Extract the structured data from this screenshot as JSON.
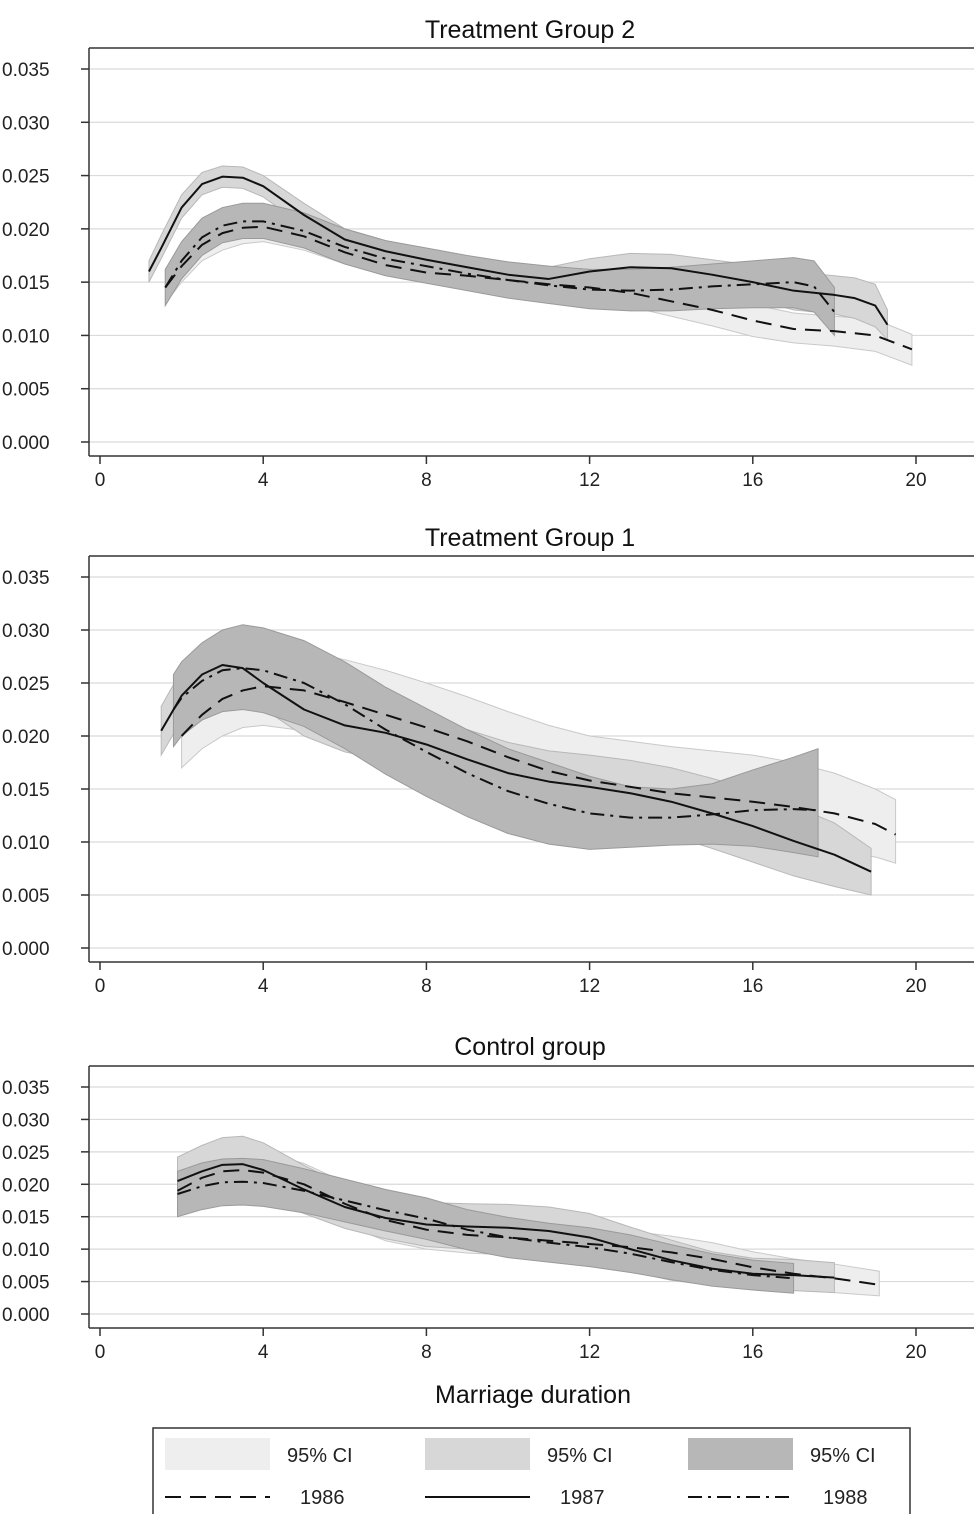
{
  "figure": {
    "xlabel": "Marriage duration",
    "styles": {
      "1986": {
        "dash": "16,9",
        "ci_fill": "#eeeeee",
        "ci_stroke": "#c9c9c9"
      },
      "1987": {
        "dash": "none",
        "ci_fill": "#d7d7d7",
        "ci_stroke": "#b8b8b8"
      },
      "1988": {
        "dash": "14,6,3,6",
        "ci_fill": "#b7b7b7",
        "ci_stroke": "#9a9a9a"
      }
    }
  },
  "legend": {
    "ci": [
      {
        "label": "95% CI",
        "color": "#eeeeee"
      },
      {
        "label": "95% CI",
        "color": "#d7d7d7"
      },
      {
        "label": "95% CI",
        "color": "#b7b7b7"
      }
    ],
    "lines": [
      {
        "label": "1986",
        "series": "1986"
      },
      {
        "label": "1987",
        "series": "1987"
      },
      {
        "label": "1988",
        "series": "1988"
      }
    ]
  },
  "chart_data": [
    {
      "type": "line",
      "title": "Treatment Group 2",
      "xlabel": "",
      "ylabel": "",
      "xlim": [
        0,
        21
      ],
      "ylim": [
        0,
        0.037
      ],
      "xticks": [
        "0",
        "4",
        "8",
        "12",
        "16",
        "20"
      ],
      "yticks": [
        "0.000",
        "0.005",
        "0.010",
        "0.015",
        "0.020",
        "0.025",
        "0.030",
        "0.035"
      ],
      "grid": true,
      "series": [
        {
          "name": "1986",
          "x": [
            1.6,
            2,
            2.5,
            3,
            3.5,
            4,
            5,
            6,
            7,
            8,
            9,
            10,
            11,
            12,
            13,
            14,
            15,
            16,
            17,
            18,
            19,
            19.9
          ],
          "y": [
            0.0145,
            0.0165,
            0.0185,
            0.0196,
            0.0201,
            0.0202,
            0.0193,
            0.0178,
            0.0166,
            0.0159,
            0.0156,
            0.0152,
            0.0148,
            0.0145,
            0.014,
            0.0132,
            0.0124,
            0.0114,
            0.0106,
            0.0104,
            0.01,
            0.0087
          ],
          "ci_low": [
            0.013,
            0.015,
            0.017,
            0.018,
            0.0186,
            0.0188,
            0.018,
            0.0167,
            0.0157,
            0.015,
            0.0146,
            0.0142,
            0.0137,
            0.0133,
            0.0127,
            0.0118,
            0.0109,
            0.0099,
            0.0093,
            0.009,
            0.0085,
            0.0072
          ],
          "ci_high": [
            0.0162,
            0.018,
            0.02,
            0.021,
            0.0216,
            0.0217,
            0.0207,
            0.019,
            0.0177,
            0.0169,
            0.0166,
            0.0162,
            0.0159,
            0.0157,
            0.0153,
            0.0146,
            0.0139,
            0.0129,
            0.0121,
            0.0118,
            0.0115,
            0.0101
          ]
        },
        {
          "name": "1987",
          "x": [
            1.2,
            1.5,
            2,
            2.5,
            3,
            3.5,
            4,
            5,
            6,
            7,
            8,
            9,
            10,
            11,
            12,
            13,
            14,
            15,
            16,
            17,
            18,
            18.5,
            19,
            19.3
          ],
          "y": [
            0.016,
            0.0182,
            0.022,
            0.0242,
            0.0249,
            0.0248,
            0.024,
            0.0213,
            0.019,
            0.0179,
            0.0171,
            0.0164,
            0.0157,
            0.0153,
            0.016,
            0.0164,
            0.0163,
            0.0157,
            0.015,
            0.0142,
            0.0138,
            0.0135,
            0.0128,
            0.011
          ],
          "ci_low": [
            0.015,
            0.0172,
            0.021,
            0.0232,
            0.0239,
            0.0238,
            0.023,
            0.0202,
            0.018,
            0.0169,
            0.0161,
            0.0154,
            0.0147,
            0.0142,
            0.0148,
            0.0151,
            0.015,
            0.0143,
            0.0134,
            0.0124,
            0.012,
            0.0116,
            0.0108,
            0.0096
          ],
          "ci_high": [
            0.017,
            0.0194,
            0.0232,
            0.0253,
            0.0259,
            0.0258,
            0.025,
            0.0224,
            0.02,
            0.0189,
            0.0181,
            0.0174,
            0.0167,
            0.0164,
            0.0172,
            0.0177,
            0.0176,
            0.0171,
            0.0166,
            0.016,
            0.0156,
            0.0154,
            0.0148,
            0.0124
          ]
        },
        {
          "name": "1988",
          "x": [
            1.6,
            2,
            2.5,
            3,
            3.5,
            4,
            5,
            6,
            7,
            8,
            9,
            10,
            11,
            12,
            13,
            14,
            15,
            16,
            17,
            17.5,
            18
          ],
          "y": [
            0.0145,
            0.017,
            0.0192,
            0.0203,
            0.0207,
            0.0207,
            0.0198,
            0.0183,
            0.0172,
            0.0165,
            0.0158,
            0.0152,
            0.0147,
            0.0143,
            0.0142,
            0.0143,
            0.0146,
            0.0148,
            0.015,
            0.0146,
            0.0122
          ],
          "ci_low": [
            0.0128,
            0.0153,
            0.0175,
            0.0187,
            0.0191,
            0.0191,
            0.0182,
            0.0167,
            0.0156,
            0.0149,
            0.0142,
            0.0135,
            0.013,
            0.0125,
            0.0123,
            0.0123,
            0.0125,
            0.0126,
            0.0126,
            0.0122,
            0.01
          ],
          "ci_high": [
            0.0162,
            0.0188,
            0.021,
            0.022,
            0.0224,
            0.0224,
            0.0215,
            0.02,
            0.0189,
            0.0182,
            0.0175,
            0.0169,
            0.0165,
            0.0162,
            0.0162,
            0.0164,
            0.0167,
            0.017,
            0.0173,
            0.017,
            0.0145
          ]
        }
      ]
    },
    {
      "type": "line",
      "title": "Treatment Group 1",
      "xlabel": "",
      "ylabel": "",
      "xlim": [
        0,
        21
      ],
      "ylim": [
        0,
        0.037
      ],
      "xticks": [
        "0",
        "4",
        "8",
        "12",
        "16",
        "20"
      ],
      "yticks": [
        "0.000",
        "0.005",
        "0.010",
        "0.015",
        "0.020",
        "0.025",
        "0.030",
        "0.035"
      ],
      "grid": true,
      "series": [
        {
          "name": "1986",
          "x": [
            2,
            2.5,
            3,
            3.5,
            4,
            5,
            6,
            7,
            8,
            9,
            10,
            11,
            12,
            13,
            14,
            15,
            16,
            17,
            18,
            19,
            19.5
          ],
          "y": [
            0.02,
            0.022,
            0.0235,
            0.0243,
            0.0247,
            0.0243,
            0.0232,
            0.022,
            0.0208,
            0.0195,
            0.018,
            0.0167,
            0.0158,
            0.0152,
            0.0146,
            0.0142,
            0.0138,
            0.0133,
            0.0127,
            0.0117,
            0.0107
          ],
          "ci_low": [
            0.017,
            0.0188,
            0.02,
            0.0208,
            0.021,
            0.0205,
            0.0193,
            0.018,
            0.0167,
            0.0153,
            0.0138,
            0.0124,
            0.0114,
            0.0107,
            0.0101,
            0.0097,
            0.0094,
            0.0092,
            0.009,
            0.0086,
            0.008
          ],
          "ci_high": [
            0.0232,
            0.0252,
            0.0268,
            0.0276,
            0.0282,
            0.028,
            0.0272,
            0.0262,
            0.025,
            0.0237,
            0.0223,
            0.021,
            0.02,
            0.0195,
            0.019,
            0.0186,
            0.0182,
            0.0175,
            0.0165,
            0.015,
            0.014
          ]
        },
        {
          "name": "1987",
          "x": [
            1.5,
            2,
            2.5,
            3,
            3.5,
            4,
            5,
            6,
            7,
            8,
            9,
            10,
            11,
            12,
            13,
            14,
            15,
            16,
            17,
            18,
            18.9
          ],
          "y": [
            0.0205,
            0.0238,
            0.0258,
            0.0267,
            0.0264,
            0.025,
            0.0225,
            0.021,
            0.0203,
            0.0192,
            0.0178,
            0.0165,
            0.0157,
            0.0152,
            0.0146,
            0.0138,
            0.0127,
            0.0115,
            0.0101,
            0.0088,
            0.0072
          ],
          "ci_low": [
            0.0182,
            0.0215,
            0.0235,
            0.0242,
            0.0238,
            0.0226,
            0.02,
            0.0185,
            0.0177,
            0.0165,
            0.0151,
            0.0137,
            0.0128,
            0.0122,
            0.0115,
            0.0106,
            0.0094,
            0.0081,
            0.0068,
            0.0058,
            0.005
          ],
          "ci_high": [
            0.0228,
            0.0262,
            0.0282,
            0.0292,
            0.029,
            0.0276,
            0.025,
            0.0236,
            0.0229,
            0.0219,
            0.0206,
            0.0194,
            0.0186,
            0.0182,
            0.0177,
            0.017,
            0.016,
            0.0149,
            0.0134,
            0.0118,
            0.0094
          ]
        },
        {
          "name": "1988",
          "x": [
            1.8,
            2,
            2.5,
            3,
            3.5,
            4,
            5,
            6,
            7,
            8,
            9,
            10,
            11,
            12,
            13,
            14,
            15,
            16,
            17,
            17.6
          ],
          "y": [
            0.0225,
            0.0236,
            0.0252,
            0.0262,
            0.0264,
            0.0262,
            0.025,
            0.023,
            0.0206,
            0.0185,
            0.0165,
            0.0148,
            0.0136,
            0.0127,
            0.0123,
            0.0123,
            0.0126,
            0.013,
            0.0131,
            0.013
          ],
          "ci_low": [
            0.019,
            0.02,
            0.0215,
            0.0223,
            0.0225,
            0.0222,
            0.0209,
            0.0188,
            0.0164,
            0.0143,
            0.0124,
            0.0108,
            0.0098,
            0.0093,
            0.0095,
            0.0097,
            0.0098,
            0.0096,
            0.009,
            0.0086
          ],
          "ci_high": [
            0.0258,
            0.027,
            0.0288,
            0.03,
            0.0305,
            0.0302,
            0.029,
            0.027,
            0.0246,
            0.0226,
            0.0206,
            0.0188,
            0.0175,
            0.0162,
            0.0152,
            0.015,
            0.0155,
            0.0168,
            0.018,
            0.0188
          ]
        }
      ]
    },
    {
      "type": "line",
      "title": "Control group",
      "xlabel": "Marriage duration",
      "ylabel": "",
      "xlim": [
        0,
        21
      ],
      "ylim": [
        0,
        0.037
      ],
      "xticks": [
        "0",
        "4",
        "8",
        "12",
        "16",
        "20"
      ],
      "yticks": [
        "0.000",
        "0.005",
        "0.010",
        "0.015",
        "0.020",
        "0.025",
        "0.030",
        "0.035"
      ],
      "grid": true,
      "series": [
        {
          "name": "1986",
          "x": [
            1.9,
            2.5,
            3,
            3.5,
            4,
            5,
            6,
            7,
            8,
            9,
            10,
            11,
            12,
            13,
            14,
            15,
            16,
            17,
            18,
            19.1
          ],
          "y": [
            0.019,
            0.021,
            0.022,
            0.0222,
            0.0218,
            0.02,
            0.017,
            0.0145,
            0.013,
            0.0122,
            0.0118,
            0.0113,
            0.0108,
            0.0103,
            0.0095,
            0.0085,
            0.0072,
            0.0062,
            0.0055,
            0.0045
          ],
          "ci_low": [
            0.016,
            0.018,
            0.019,
            0.0193,
            0.0189,
            0.017,
            0.0138,
            0.0113,
            0.01,
            0.0094,
            0.0091,
            0.0087,
            0.0083,
            0.0078,
            0.007,
            0.006,
            0.0048,
            0.0039,
            0.0033,
            0.0028
          ],
          "ci_high": [
            0.0222,
            0.0242,
            0.0252,
            0.0255,
            0.025,
            0.0232,
            0.0203,
            0.0177,
            0.016,
            0.015,
            0.0145,
            0.0139,
            0.0134,
            0.0128,
            0.012,
            0.011,
            0.0096,
            0.0085,
            0.0077,
            0.0066
          ]
        },
        {
          "name": "1987",
          "x": [
            1.9,
            2.5,
            3,
            3.5,
            4,
            5,
            6,
            7,
            8,
            9,
            10,
            11,
            12,
            13,
            14,
            15,
            16,
            17,
            18
          ],
          "y": [
            0.0205,
            0.022,
            0.023,
            0.0231,
            0.0222,
            0.0192,
            0.0165,
            0.0148,
            0.0138,
            0.0135,
            0.0133,
            0.0128,
            0.0118,
            0.01,
            0.0083,
            0.007,
            0.0062,
            0.006,
            0.0056
          ],
          "ci_low": [
            0.0168,
            0.018,
            0.0188,
            0.0188,
            0.018,
            0.0155,
            0.0132,
            0.0116,
            0.0104,
            0.01,
            0.0097,
            0.0091,
            0.0081,
            0.0066,
            0.0052,
            0.0044,
            0.0038,
            0.0036,
            0.0033
          ],
          "ci_high": [
            0.0242,
            0.026,
            0.0272,
            0.0274,
            0.0264,
            0.0229,
            0.0198,
            0.018,
            0.0172,
            0.017,
            0.0169,
            0.0165,
            0.0155,
            0.0134,
            0.0114,
            0.0096,
            0.0086,
            0.0084,
            0.0079
          ]
        },
        {
          "name": "1988",
          "x": [
            1.9,
            2.5,
            3,
            3.5,
            4,
            5,
            6,
            7,
            8,
            9,
            10,
            11,
            12,
            13,
            14,
            15,
            16,
            17
          ],
          "y": [
            0.0185,
            0.0197,
            0.0203,
            0.0204,
            0.0202,
            0.019,
            0.0175,
            0.016,
            0.0147,
            0.013,
            0.0118,
            0.011,
            0.0103,
            0.0093,
            0.008,
            0.0068,
            0.006,
            0.0055
          ],
          "ci_low": [
            0.015,
            0.0161,
            0.0167,
            0.0168,
            0.0166,
            0.0156,
            0.0142,
            0.0128,
            0.0115,
            0.0099,
            0.0087,
            0.008,
            0.0073,
            0.0064,
            0.0053,
            0.0043,
            0.0037,
            0.0032
          ],
          "ci_high": [
            0.022,
            0.0233,
            0.0239,
            0.024,
            0.0238,
            0.0224,
            0.0208,
            0.0192,
            0.0179,
            0.0161,
            0.0149,
            0.014,
            0.0133,
            0.0122,
            0.0107,
            0.0093,
            0.0083,
            0.0078
          ]
        }
      ]
    }
  ]
}
